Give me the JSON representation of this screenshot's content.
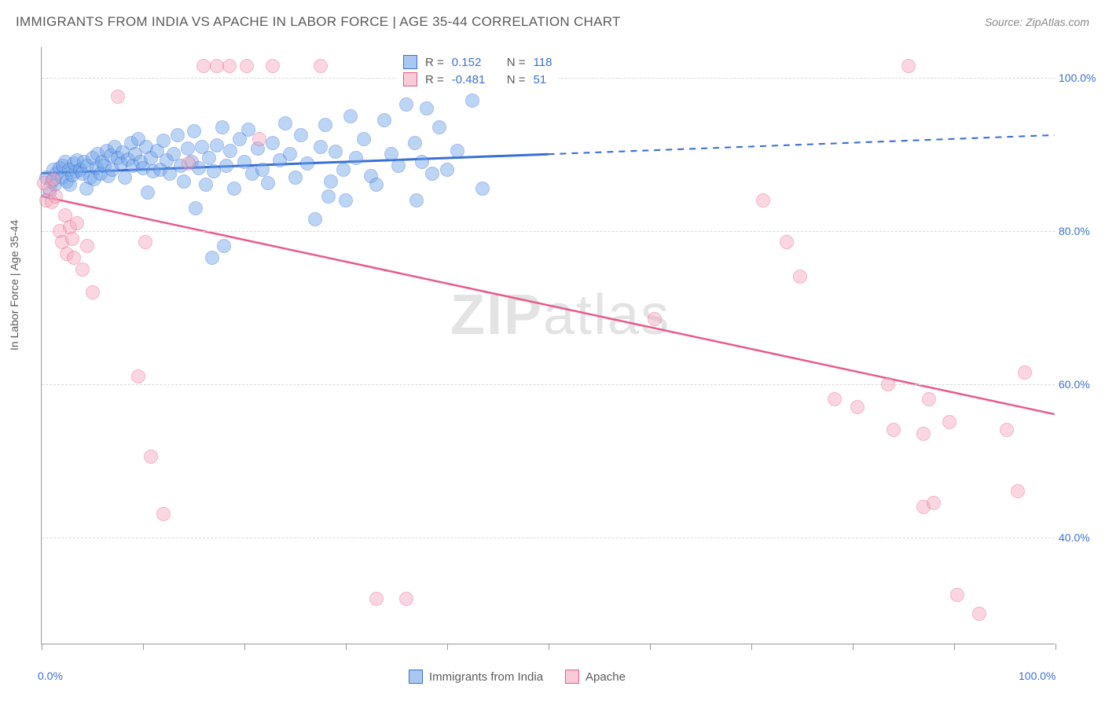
{
  "header": {
    "title": "IMMIGRANTS FROM INDIA VS APACHE IN LABOR FORCE | AGE 35-44 CORRELATION CHART",
    "source": "Source: ZipAtlas.com"
  },
  "watermark": {
    "strong": "ZIP",
    "light": "atlas"
  },
  "y_axis": {
    "label": "In Labor Force | Age 35-44"
  },
  "chart": {
    "type": "scatter",
    "xlim": [
      0,
      100
    ],
    "ylim": [
      26,
      104
    ],
    "grid_y": [
      40,
      60,
      80,
      100
    ],
    "y_tick_labels": [
      "40.0%",
      "60.0%",
      "80.0%",
      "100.0%"
    ],
    "x_ticks": [
      0,
      10,
      20,
      30,
      40,
      50,
      60,
      70,
      80,
      90,
      100
    ],
    "x_tick_left_label": "0.0%",
    "x_tick_right_label": "100.0%",
    "background_color": "#ffffff",
    "grid_color": "#d8d8d8",
    "axis_color": "#999999",
    "tick_label_color": "#3b6fd6",
    "marker_radius": 9,
    "marker_opacity": 0.45,
    "series": [
      {
        "name": "Immigrants from India",
        "fill_color": "#6fa4e8",
        "stroke_color": "#3b6fd6",
        "trend": {
          "x1": 0,
          "y1": 87.5,
          "x2": 50,
          "y2": 90.0,
          "dash_to_x": 100,
          "dash_to_y": 92.5,
          "width": 3
        },
        "R": "0.152",
        "N": "118",
        "points": [
          [
            0.5,
            87
          ],
          [
            0.8,
            85
          ],
          [
            1.0,
            86.5
          ],
          [
            1.2,
            88
          ],
          [
            1.3,
            86
          ],
          [
            1.5,
            87.5
          ],
          [
            1.8,
            88.2
          ],
          [
            2.0,
            87
          ],
          [
            2.1,
            88.5
          ],
          [
            2.3,
            89
          ],
          [
            2.5,
            86.5
          ],
          [
            2.7,
            88
          ],
          [
            2.8,
            86
          ],
          [
            3.0,
            87.3
          ],
          [
            3.2,
            88.8
          ],
          [
            3.4,
            87.8
          ],
          [
            3.5,
            89.2
          ],
          [
            3.8,
            88
          ],
          [
            4.0,
            87.5
          ],
          [
            4.2,
            89
          ],
          [
            4.4,
            85.5
          ],
          [
            4.5,
            88.5
          ],
          [
            4.8,
            87
          ],
          [
            5.0,
            89.5
          ],
          [
            5.2,
            86.8
          ],
          [
            5.4,
            88.2
          ],
          [
            5.5,
            90
          ],
          [
            5.8,
            87.5
          ],
          [
            6.0,
            89
          ],
          [
            6.2,
            88.5
          ],
          [
            6.4,
            90.5
          ],
          [
            6.6,
            87.2
          ],
          [
            6.8,
            89.8
          ],
          [
            7.0,
            88
          ],
          [
            7.2,
            91
          ],
          [
            7.5,
            89.5
          ],
          [
            7.8,
            88.8
          ],
          [
            8.0,
            90.2
          ],
          [
            8.2,
            87
          ],
          [
            8.5,
            89.3
          ],
          [
            8.8,
            91.5
          ],
          [
            9.0,
            88.5
          ],
          [
            9.2,
            90
          ],
          [
            9.5,
            92
          ],
          [
            9.8,
            89
          ],
          [
            10.0,
            88.2
          ],
          [
            10.3,
            91
          ],
          [
            10.5,
            85
          ],
          [
            10.8,
            89.5
          ],
          [
            11.0,
            87.8
          ],
          [
            11.4,
            90.5
          ],
          [
            11.7,
            88
          ],
          [
            12.0,
            91.8
          ],
          [
            12.3,
            89.2
          ],
          [
            12.6,
            87.5
          ],
          [
            13.0,
            90
          ],
          [
            13.4,
            92.5
          ],
          [
            13.7,
            88.5
          ],
          [
            14.0,
            86.5
          ],
          [
            14.4,
            90.8
          ],
          [
            14.8,
            89
          ],
          [
            15.0,
            93
          ],
          [
            15.5,
            88.2
          ],
          [
            15.8,
            91
          ],
          [
            16.2,
            86
          ],
          [
            16.5,
            89.5
          ],
          [
            17.0,
            87.8
          ],
          [
            17.3,
            91.2
          ],
          [
            17.8,
            93.5
          ],
          [
            18.2,
            88.5
          ],
          [
            18.6,
            90.5
          ],
          [
            19.0,
            85.5
          ],
          [
            19.5,
            92
          ],
          [
            20.0,
            89
          ],
          [
            20.4,
            93.2
          ],
          [
            20.8,
            87.5
          ],
          [
            21.3,
            90.8
          ],
          [
            21.8,
            88
          ],
          [
            22.3,
            86.2
          ],
          [
            22.8,
            91.5
          ],
          [
            23.5,
            89.2
          ],
          [
            24.0,
            94
          ],
          [
            24.5,
            90
          ],
          [
            25.0,
            87
          ],
          [
            25.6,
            92.5
          ],
          [
            26.2,
            88.8
          ],
          [
            27.0,
            81.5
          ],
          [
            27.5,
            91
          ],
          [
            28.0,
            93.8
          ],
          [
            28.5,
            86.5
          ],
          [
            29.0,
            90.3
          ],
          [
            29.8,
            88
          ],
          [
            30.5,
            95
          ],
          [
            31.0,
            89.5
          ],
          [
            31.8,
            92
          ],
          [
            32.5,
            87.2
          ],
          [
            33.0,
            86
          ],
          [
            33.8,
            94.5
          ],
          [
            34.5,
            90
          ],
          [
            35.2,
            88.5
          ],
          [
            36.0,
            96.5
          ],
          [
            36.8,
            91.5
          ],
          [
            37.5,
            89
          ],
          [
            38.0,
            96
          ],
          [
            38.5,
            87.5
          ],
          [
            39.2,
            93.5
          ],
          [
            40.0,
            88
          ],
          [
            41.0,
            90.5
          ],
          [
            42.5,
            97
          ],
          [
            43.5,
            85.5
          ],
          [
            15.2,
            83
          ],
          [
            18.0,
            78
          ],
          [
            16.8,
            76.5
          ],
          [
            37.0,
            84
          ],
          [
            39.5,
            99.5
          ],
          [
            28.3,
            84.5
          ],
          [
            30.0,
            84
          ],
          [
            40.5,
            101.5
          ]
        ]
      },
      {
        "name": "Apache",
        "fill_color": "#f4a8bc",
        "stroke_color": "#e85a88",
        "trend": {
          "x1": 0,
          "y1": 84.5,
          "x2": 100,
          "y2": 56,
          "width": 2.5
        },
        "R": "-0.481",
        "N": "51",
        "points": [
          [
            0.2,
            86.2
          ],
          [
            0.5,
            84
          ],
          [
            0.8,
            85.5
          ],
          [
            1.0,
            83.8
          ],
          [
            1.2,
            86.8
          ],
          [
            1.4,
            84.5
          ],
          [
            1.8,
            80
          ],
          [
            2.0,
            78.5
          ],
          [
            2.3,
            82
          ],
          [
            2.5,
            77
          ],
          [
            2.8,
            80.5
          ],
          [
            3.0,
            79
          ],
          [
            3.2,
            76.5
          ],
          [
            3.5,
            81
          ],
          [
            4.0,
            75
          ],
          [
            4.5,
            78
          ],
          [
            5.0,
            72
          ],
          [
            7.5,
            97.5
          ],
          [
            9.5,
            61
          ],
          [
            10.2,
            78.5
          ],
          [
            10.8,
            50.5
          ],
          [
            12.0,
            43
          ],
          [
            14.5,
            88.8
          ],
          [
            16.0,
            101.5
          ],
          [
            17.3,
            101.5
          ],
          [
            18.5,
            101.5
          ],
          [
            20.2,
            101.5
          ],
          [
            21.5,
            92
          ],
          [
            22.8,
            101.5
          ],
          [
            27.5,
            101.5
          ],
          [
            33.0,
            32
          ],
          [
            36.0,
            32
          ],
          [
            60.5,
            68.5
          ],
          [
            71.2,
            84
          ],
          [
            73.5,
            78.5
          ],
          [
            74.8,
            74
          ],
          [
            78.2,
            58
          ],
          [
            80.5,
            57
          ],
          [
            83.5,
            60
          ],
          [
            84.0,
            54
          ],
          [
            85.5,
            101.5
          ],
          [
            87.0,
            53.5
          ],
          [
            87.0,
            44
          ],
          [
            87.5,
            58
          ],
          [
            88.0,
            44.5
          ],
          [
            89.5,
            55
          ],
          [
            90.3,
            32.5
          ],
          [
            92.5,
            30
          ],
          [
            95.2,
            54
          ],
          [
            96.3,
            46
          ],
          [
            97.0,
            61.5
          ]
        ]
      }
    ]
  },
  "legend_top": {
    "r_label": "R =",
    "n_label": "N ="
  },
  "legend_bottom": {
    "items": [
      "Immigrants from India",
      "Apache"
    ]
  }
}
